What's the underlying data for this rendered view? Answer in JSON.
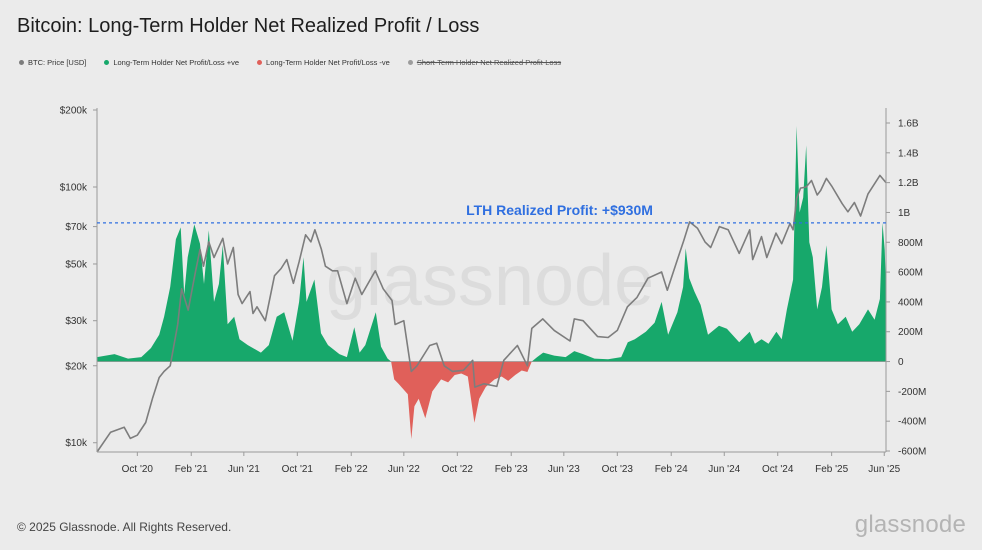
{
  "title": "Bitcoin: Long-Term Holder Net Realized Profit / Loss",
  "legend": [
    {
      "label": "BTC: Price [USD]",
      "color": "#7d7d7d",
      "enabled": true
    },
    {
      "label": "Long-Term Holder Net Profit/Loss +ve",
      "color": "#17a86b",
      "enabled": true
    },
    {
      "label": "Long-Term Holder Net Profit/Loss -ve",
      "color": "#e0605a",
      "enabled": true
    },
    {
      "label": "Short-Term Holder Net Realized Profit-Loss",
      "color": "#9c9c9c",
      "enabled": false
    }
  ],
  "watermark": "glassnode",
  "footer": {
    "copyright": "© 2025 Glassnode. All Rights Reserved.",
    "brand": "glassnode"
  },
  "chart_data": {
    "type": "area",
    "title": "Bitcoin: Long-Term Holder Net Realized Profit / Loss",
    "x_start": "2020-07-01",
    "x_end": "2025-06-05",
    "x_ticks": [
      {
        "label": "Oct '20",
        "date": "2020-10-01"
      },
      {
        "label": "Feb '21",
        "date": "2021-02-01"
      },
      {
        "label": "Jun '21",
        "date": "2021-06-01"
      },
      {
        "label": "Oct '21",
        "date": "2021-10-01"
      },
      {
        "label": "Feb '22",
        "date": "2022-02-01"
      },
      {
        "label": "Jun '22",
        "date": "2022-06-01"
      },
      {
        "label": "Oct '22",
        "date": "2022-10-01"
      },
      {
        "label": "Feb '23",
        "date": "2023-02-01"
      },
      {
        "label": "Jun '23",
        "date": "2023-06-01"
      },
      {
        "label": "Oct '23",
        "date": "2023-10-01"
      },
      {
        "label": "Feb '24",
        "date": "2024-02-01"
      },
      {
        "label": "Jun '24",
        "date": "2024-06-01"
      },
      {
        "label": "Oct '24",
        "date": "2024-10-01"
      },
      {
        "label": "Feb '25",
        "date": "2025-02-01"
      },
      {
        "label": "Jun '25",
        "date": "2025-06-01"
      }
    ],
    "left_axis": {
      "label": "BTC: Price [USD]",
      "scale": "log",
      "range": [
        9200,
        200000
      ],
      "ticks": [
        {
          "value": 10000,
          "label": "$10k"
        },
        {
          "value": 20000,
          "label": "$20k"
        },
        {
          "value": 30000,
          "label": "$30k"
        },
        {
          "value": 50000,
          "label": "$50k"
        },
        {
          "value": 70000,
          "label": "$70k"
        },
        {
          "value": 100000,
          "label": "$100k"
        },
        {
          "value": 200000,
          "label": "$200k"
        }
      ]
    },
    "right_axis": {
      "scale": "linear",
      "range": [
        -600000000,
        1600000000
      ],
      "ticks": [
        {
          "value": 1600000000,
          "label": "1.6B"
        },
        {
          "value": 1400000000,
          "label": "1.4B"
        },
        {
          "value": 1200000000,
          "label": "1.2B"
        },
        {
          "value": 1000000000,
          "label": "1B"
        },
        {
          "value": 800000000,
          "label": "800M"
        },
        {
          "value": 600000000,
          "label": "600M"
        },
        {
          "value": 400000000,
          "label": "400M"
        },
        {
          "value": 200000000,
          "label": "200M"
        },
        {
          "value": 0,
          "label": "0"
        },
        {
          "value": -200000000,
          "label": "-200M"
        },
        {
          "value": -400000000,
          "label": "-400M"
        },
        {
          "value": -600000000,
          "label": "-600M"
        }
      ]
    },
    "annotation": {
      "text": "LTH Realized Profit: +$930M",
      "value": 930000000,
      "color": "#2f6fe0"
    },
    "series": [
      {
        "name": "BTC: Price [USD]",
        "axis": "left",
        "color": "#7d7d7d",
        "points": [
          [
            "2020-07-01",
            9200
          ],
          [
            "2020-08-01",
            11000
          ],
          [
            "2020-09-01",
            11500
          ],
          [
            "2020-09-15",
            10400
          ],
          [
            "2020-10-01",
            10700
          ],
          [
            "2020-10-20",
            12000
          ],
          [
            "2020-11-05",
            15000
          ],
          [
            "2020-11-20",
            18000
          ],
          [
            "2020-12-01",
            19000
          ],
          [
            "2020-12-15",
            20000
          ],
          [
            "2021-01-01",
            29000
          ],
          [
            "2021-01-10",
            40000
          ],
          [
            "2021-01-25",
            33000
          ],
          [
            "2021-02-10",
            46000
          ],
          [
            "2021-02-21",
            57000
          ],
          [
            "2021-03-01",
            49000
          ],
          [
            "2021-03-13",
            61000
          ],
          [
            "2021-03-25",
            53000
          ],
          [
            "2021-04-14",
            63000
          ],
          [
            "2021-04-25",
            50000
          ],
          [
            "2021-05-08",
            58000
          ],
          [
            "2021-05-19",
            38000
          ],
          [
            "2021-05-28",
            35000
          ],
          [
            "2021-06-15",
            39000
          ],
          [
            "2021-06-22",
            32000
          ],
          [
            "2021-07-01",
            34000
          ],
          [
            "2021-07-20",
            30000
          ],
          [
            "2021-08-10",
            45000
          ],
          [
            "2021-08-25",
            48000
          ],
          [
            "2021-09-07",
            52000
          ],
          [
            "2021-09-22",
            42000
          ],
          [
            "2021-10-05",
            51000
          ],
          [
            "2021-10-20",
            65000
          ],
          [
            "2021-11-01",
            61000
          ],
          [
            "2021-11-10",
            68000
          ],
          [
            "2021-11-25",
            57000
          ],
          [
            "2021-12-04",
            49000
          ],
          [
            "2021-12-20",
            47000
          ],
          [
            "2022-01-01",
            47000
          ],
          [
            "2022-01-22",
            35000
          ],
          [
            "2022-02-10",
            44000
          ],
          [
            "2022-02-25",
            38000
          ],
          [
            "2022-03-28",
            47000
          ],
          [
            "2022-04-15",
            40000
          ],
          [
            "2022-05-05",
            36000
          ],
          [
            "2022-05-12",
            29000
          ],
          [
            "2022-06-01",
            30000
          ],
          [
            "2022-06-18",
            19000
          ],
          [
            "2022-07-01",
            20000
          ],
          [
            "2022-07-30",
            24000
          ],
          [
            "2022-08-15",
            24500
          ],
          [
            "2022-09-01",
            20000
          ],
          [
            "2022-09-20",
            19000
          ],
          [
            "2022-10-15",
            19200
          ],
          [
            "2022-11-05",
            21000
          ],
          [
            "2022-11-10",
            16500
          ],
          [
            "2022-12-01",
            17000
          ],
          [
            "2022-12-30",
            16600
          ],
          [
            "2023-01-15",
            21000
          ],
          [
            "2023-02-15",
            24000
          ],
          [
            "2023-03-10",
            20000
          ],
          [
            "2023-03-20",
            28000
          ],
          [
            "2023-04-14",
            30500
          ],
          [
            "2023-05-10",
            27500
          ],
          [
            "2023-06-15",
            25000
          ],
          [
            "2023-06-25",
            30500
          ],
          [
            "2023-07-15",
            30000
          ],
          [
            "2023-08-17",
            26000
          ],
          [
            "2023-09-10",
            25800
          ],
          [
            "2023-10-01",
            27500
          ],
          [
            "2023-10-24",
            34000
          ],
          [
            "2023-11-15",
            37000
          ],
          [
            "2023-12-10",
            44000
          ],
          [
            "2024-01-10",
            46500
          ],
          [
            "2024-01-23",
            39500
          ],
          [
            "2024-02-15",
            52000
          ],
          [
            "2024-03-01",
            62000
          ],
          [
            "2024-03-14",
            73000
          ],
          [
            "2024-04-01",
            69000
          ],
          [
            "2024-04-18",
            61000
          ],
          [
            "2024-05-01",
            58000
          ],
          [
            "2024-05-21",
            70000
          ],
          [
            "2024-06-10",
            68000
          ],
          [
            "2024-07-05",
            55000
          ],
          [
            "2024-07-29",
            68000
          ],
          [
            "2024-08-05",
            52000
          ],
          [
            "2024-08-25",
            64000
          ],
          [
            "2024-09-06",
            53000
          ],
          [
            "2024-09-27",
            66000
          ],
          [
            "2024-10-10",
            60000
          ],
          [
            "2024-10-29",
            72000
          ],
          [
            "2024-11-05",
            68000
          ],
          [
            "2024-11-13",
            90000
          ],
          [
            "2024-11-22",
            99000
          ],
          [
            "2024-12-05",
            100000
          ],
          [
            "2024-12-17",
            106000
          ],
          [
            "2024-12-30",
            93000
          ],
          [
            "2025-01-07",
            97000
          ],
          [
            "2025-01-20",
            108000
          ],
          [
            "2025-02-01",
            101000
          ],
          [
            "2025-02-25",
            86000
          ],
          [
            "2025-03-10",
            80000
          ],
          [
            "2025-03-25",
            87000
          ],
          [
            "2025-04-08",
            77000
          ],
          [
            "2025-04-25",
            94000
          ],
          [
            "2025-05-10",
            103000
          ],
          [
            "2025-05-22",
            111000
          ],
          [
            "2025-06-05",
            104000
          ]
        ]
      },
      {
        "name": "Long-Term Holder Net Profit/Loss +ve",
        "axis": "right",
        "color": "#17a86b",
        "points": [
          [
            "2020-07-01",
            30000000
          ],
          [
            "2020-08-10",
            50000000
          ],
          [
            "2020-09-10",
            20000000
          ],
          [
            "2020-10-10",
            30000000
          ],
          [
            "2020-11-01",
            90000000
          ],
          [
            "2020-11-20",
            180000000
          ],
          [
            "2020-12-01",
            300000000
          ],
          [
            "2020-12-15",
            500000000
          ],
          [
            "2020-12-28",
            820000000
          ],
          [
            "2021-01-08",
            900000000
          ],
          [
            "2021-01-16",
            450000000
          ],
          [
            "2021-01-24",
            700000000
          ],
          [
            "2021-02-08",
            920000000
          ],
          [
            "2021-02-21",
            790000000
          ],
          [
            "2021-03-02",
            520000000
          ],
          [
            "2021-03-13",
            880000000
          ],
          [
            "2021-03-25",
            400000000
          ],
          [
            "2021-04-05",
            520000000
          ],
          [
            "2021-04-14",
            780000000
          ],
          [
            "2021-04-25",
            250000000
          ],
          [
            "2021-05-10",
            300000000
          ],
          [
            "2021-05-22",
            150000000
          ],
          [
            "2021-06-10",
            110000000
          ],
          [
            "2021-07-10",
            60000000
          ],
          [
            "2021-07-28",
            110000000
          ],
          [
            "2021-08-15",
            300000000
          ],
          [
            "2021-09-01",
            330000000
          ],
          [
            "2021-09-20",
            140000000
          ],
          [
            "2021-10-05",
            400000000
          ],
          [
            "2021-10-15",
            700000000
          ],
          [
            "2021-10-22",
            400000000
          ],
          [
            "2021-11-09",
            550000000
          ],
          [
            "2021-11-24",
            190000000
          ],
          [
            "2021-12-10",
            110000000
          ],
          [
            "2022-01-05",
            50000000
          ],
          [
            "2022-01-22",
            30000000
          ],
          [
            "2022-02-08",
            230000000
          ],
          [
            "2022-02-20",
            60000000
          ],
          [
            "2022-03-05",
            110000000
          ],
          [
            "2022-03-29",
            330000000
          ],
          [
            "2022-04-10",
            100000000
          ],
          [
            "2022-04-25",
            20000000
          ],
          [
            "2022-05-03",
            0
          ]
        ]
      },
      {
        "name": "Long-Term Holder Net Profit/Loss -ve",
        "axis": "right",
        "color": "#e0605a",
        "points": [
          [
            "2022-05-03",
            0
          ],
          [
            "2022-05-10",
            -120000000
          ],
          [
            "2022-05-20",
            -150000000
          ],
          [
            "2022-06-10",
            -220000000
          ],
          [
            "2022-06-18",
            -520000000
          ],
          [
            "2022-06-25",
            -300000000
          ],
          [
            "2022-07-05",
            -250000000
          ],
          [
            "2022-07-20",
            -380000000
          ],
          [
            "2022-08-05",
            -200000000
          ],
          [
            "2022-08-25",
            -120000000
          ],
          [
            "2022-09-10",
            -140000000
          ],
          [
            "2022-09-25",
            -90000000
          ],
          [
            "2022-10-10",
            -80000000
          ],
          [
            "2022-10-25",
            -100000000
          ],
          [
            "2022-11-09",
            -410000000
          ],
          [
            "2022-11-20",
            -250000000
          ],
          [
            "2022-12-05",
            -170000000
          ],
          [
            "2022-12-25",
            -120000000
          ],
          [
            "2023-01-10",
            -100000000
          ],
          [
            "2023-01-25",
            -130000000
          ],
          [
            "2023-02-10",
            -90000000
          ],
          [
            "2023-02-25",
            -60000000
          ],
          [
            "2023-03-10",
            -70000000
          ],
          [
            "2023-03-20",
            0
          ]
        ]
      }
    ],
    "positive_2023_onward": [
      [
        "2023-03-20",
        0
      ],
      [
        "2023-04-01",
        30000000
      ],
      [
        "2023-04-15",
        60000000
      ],
      [
        "2023-05-10",
        40000000
      ],
      [
        "2023-06-05",
        30000000
      ],
      [
        "2023-06-25",
        70000000
      ],
      [
        "2023-07-15",
        50000000
      ],
      [
        "2023-08-10",
        20000000
      ],
      [
        "2023-09-10",
        15000000
      ],
      [
        "2023-10-10",
        30000000
      ],
      [
        "2023-10-25",
        130000000
      ],
      [
        "2023-11-10",
        150000000
      ],
      [
        "2023-12-05",
        200000000
      ],
      [
        "2023-12-25",
        260000000
      ],
      [
        "2024-01-10",
        400000000
      ],
      [
        "2024-01-25",
        180000000
      ],
      [
        "2024-02-15",
        330000000
      ],
      [
        "2024-02-28",
        500000000
      ],
      [
        "2024-03-05",
        760000000
      ],
      [
        "2024-03-13",
        560000000
      ],
      [
        "2024-03-25",
        470000000
      ],
      [
        "2024-04-08",
        380000000
      ],
      [
        "2024-04-25",
        180000000
      ],
      [
        "2024-05-20",
        240000000
      ],
      [
        "2024-06-07",
        220000000
      ],
      [
        "2024-07-05",
        130000000
      ],
      [
        "2024-07-29",
        200000000
      ],
      [
        "2024-08-10",
        120000000
      ],
      [
        "2024-08-25",
        150000000
      ],
      [
        "2024-09-10",
        120000000
      ],
      [
        "2024-09-28",
        200000000
      ],
      [
        "2024-10-10",
        150000000
      ],
      [
        "2024-10-22",
        350000000
      ],
      [
        "2024-11-05",
        550000000
      ],
      [
        "2024-11-13",
        1580000000
      ],
      [
        "2024-11-20",
        1000000000
      ],
      [
        "2024-11-28",
        1100000000
      ],
      [
        "2024-12-05",
        1450000000
      ],
      [
        "2024-12-12",
        800000000
      ],
      [
        "2024-12-20",
        700000000
      ],
      [
        "2024-12-30",
        350000000
      ],
      [
        "2025-01-10",
        500000000
      ],
      [
        "2025-01-20",
        780000000
      ],
      [
        "2025-02-01",
        350000000
      ],
      [
        "2025-02-15",
        250000000
      ],
      [
        "2025-03-05",
        300000000
      ],
      [
        "2025-03-20",
        200000000
      ],
      [
        "2025-04-05",
        250000000
      ],
      [
        "2025-04-25",
        350000000
      ],
      [
        "2025-05-10",
        280000000
      ],
      [
        "2025-05-22",
        420000000
      ],
      [
        "2025-05-28",
        930000000
      ],
      [
        "2025-06-02",
        750000000
      ],
      [
        "2025-06-05",
        500000000
      ]
    ]
  }
}
